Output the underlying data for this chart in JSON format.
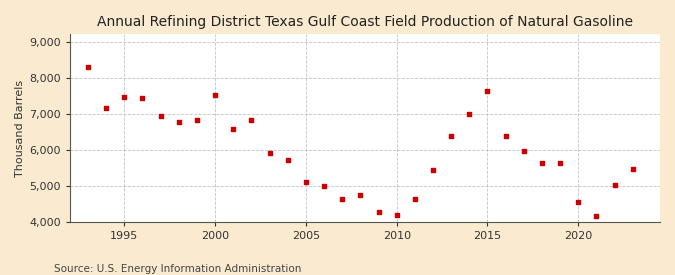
{
  "title": "Annual Refining District Texas Gulf Coast Field Production of Natural Gasoline",
  "ylabel": "Thousand Barrels",
  "source": "Source: U.S. Energy Information Administration",
  "fig_background_color": "#faebd0",
  "plot_background_color": "#ffffff",
  "grid_color": "#aaaaaa",
  "marker_color": "#cc0000",
  "years": [
    1993,
    1994,
    1995,
    1996,
    1997,
    1998,
    1999,
    2000,
    2001,
    2002,
    2003,
    2004,
    2005,
    2006,
    2007,
    2008,
    2009,
    2010,
    2011,
    2012,
    2013,
    2014,
    2015,
    2016,
    2017,
    2018,
    2019,
    2020,
    2021,
    2022,
    2023
  ],
  "values": [
    8280,
    7150,
    7450,
    7420,
    6920,
    6780,
    6820,
    7520,
    6580,
    6820,
    5900,
    5720,
    5100,
    4980,
    4620,
    4740,
    4280,
    4200,
    4620,
    5430,
    6380,
    6980,
    7640,
    6380,
    5960,
    5640,
    5630,
    4560,
    4170,
    5020,
    5450
  ],
  "xlim": [
    1992,
    2024.5
  ],
  "ylim": [
    4000,
    9200
  ],
  "yticks": [
    4000,
    5000,
    6000,
    7000,
    8000,
    9000
  ],
  "xticks": [
    1995,
    2000,
    2005,
    2010,
    2015,
    2020
  ],
  "title_fontsize": 10,
  "label_fontsize": 8,
  "tick_fontsize": 8,
  "source_fontsize": 7.5
}
